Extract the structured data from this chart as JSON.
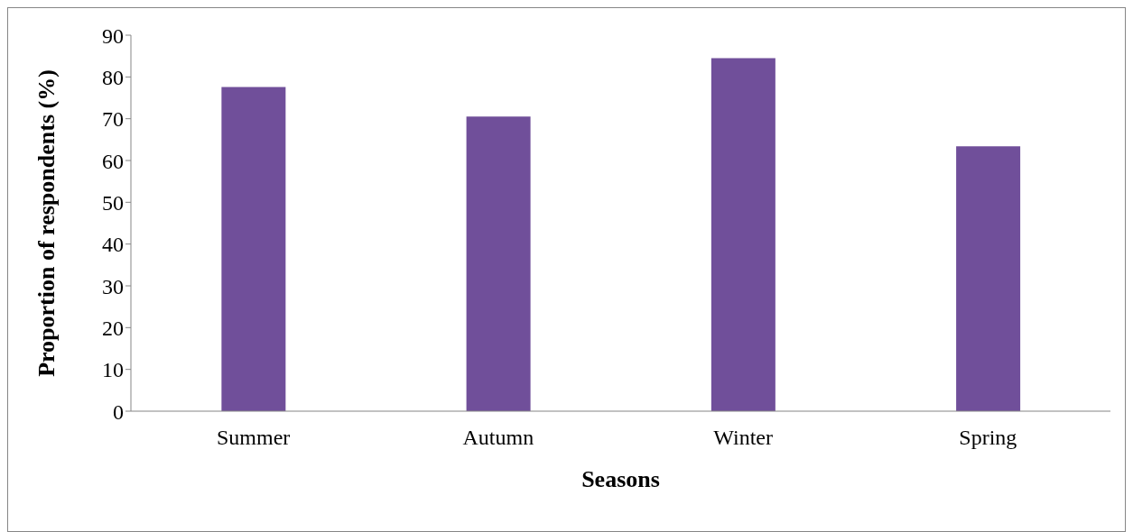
{
  "chart_data": {
    "type": "bar",
    "xlabel": "Seasons",
    "ylabel": "Proportion of respondents (%)",
    "categories": [
      "Summer",
      "Autumn",
      "Winter",
      "Spring"
    ],
    "values": [
      77.6,
      70.5,
      84.5,
      63.4
    ],
    "color": "#704f9a",
    "ylim": [
      0,
      90
    ],
    "yticks": [
      0,
      10,
      20,
      30,
      40,
      50,
      60,
      70,
      80,
      90
    ],
    "grid": false,
    "legend": false
  }
}
